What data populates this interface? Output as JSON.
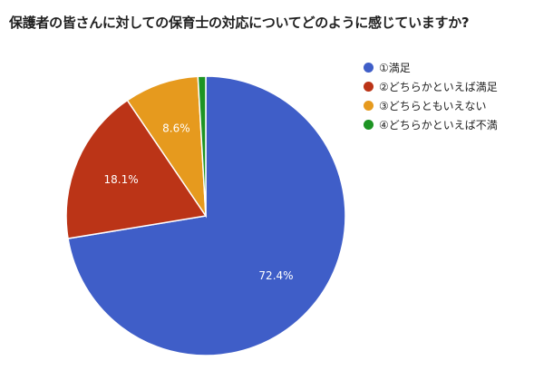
{
  "chart_data": {
    "type": "pie",
    "title": "保護者の皆さんに対しての保育士の対応についてどのように感じていますか?",
    "legend_position": "right",
    "slices": [
      {
        "label": "①満足",
        "value": 72.4,
        "display": "72.4%",
        "color": "#3F5EC8"
      },
      {
        "label": "②どちらかといえば満足",
        "value": 18.1,
        "display": "18.1%",
        "color": "#BB3417"
      },
      {
        "label": "③どちらともいえない",
        "value": 8.6,
        "display": "8.6%",
        "color": "#E69A1E"
      },
      {
        "label": "④どちらかといえば不満",
        "value": 0.9,
        "display": "",
        "color": "#1D9423"
      }
    ]
  }
}
